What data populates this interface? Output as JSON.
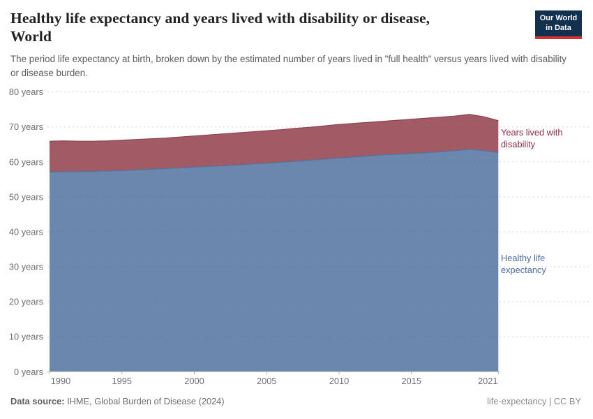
{
  "header": {
    "title_line1": "Healthy life expectancy and years lived with disability or disease,",
    "title_line2": "World",
    "subtitle": "The period life expectancy at birth, broken down by the estimated number of years lived in \"full health\" versus years lived with disability or disease burden.",
    "logo": {
      "line1": "Our World",
      "line2": "in Data"
    }
  },
  "chart_data": {
    "type": "area",
    "stacked": true,
    "title": "Healthy life expectancy and years lived with disability or disease, World",
    "x": [
      1990,
      1991,
      1992,
      1993,
      1994,
      1995,
      1996,
      1997,
      1998,
      1999,
      2000,
      2001,
      2002,
      2003,
      2004,
      2005,
      2006,
      2007,
      2008,
      2009,
      2010,
      2011,
      2012,
      2013,
      2014,
      2015,
      2016,
      2017,
      2018,
      2019,
      2020,
      2021
    ],
    "series": [
      {
        "name": "Healthy life expectancy",
        "fill": "#6c87ae",
        "stroke": "#53719e",
        "label_color": "#4c6b9f",
        "values": [
          57.1,
          57.2,
          57.2,
          57.3,
          57.4,
          57.5,
          57.7,
          57.9,
          58.1,
          58.3,
          58.5,
          58.7,
          58.9,
          59.1,
          59.4,
          59.6,
          59.9,
          60.2,
          60.5,
          60.8,
          61.1,
          61.4,
          61.7,
          62.0,
          62.2,
          62.4,
          62.6,
          62.9,
          63.2,
          63.6,
          63.2,
          62.7
        ]
      },
      {
        "name": "Years lived with disability",
        "fill": "#a25a64",
        "stroke": "#8d4250",
        "label_color": "#8d2f45",
        "values": [
          8.8,
          8.8,
          8.7,
          8.6,
          8.6,
          8.7,
          8.7,
          8.7,
          8.7,
          8.8,
          8.9,
          9.0,
          9.1,
          9.2,
          9.2,
          9.3,
          9.3,
          9.4,
          9.4,
          9.5,
          9.6,
          9.6,
          9.6,
          9.6,
          9.7,
          9.8,
          9.9,
          9.9,
          9.9,
          10.0,
          9.7,
          9.1
        ]
      }
    ],
    "ylim": [
      0,
      80
    ],
    "y_ticks": [
      0,
      10,
      20,
      30,
      40,
      50,
      60,
      70,
      80
    ],
    "y_tick_suffix": " years",
    "x_ticks": [
      1990,
      1995,
      2000,
      2005,
      2010,
      2015,
      2021
    ],
    "grid": true,
    "gridline_color": "#d9d9d9",
    "axis_label_color": "#6e6e6e",
    "legend_position": "right-of-plot"
  },
  "legend": {
    "yld_label": "Years lived with disability",
    "hale_label": "Healthy life expectancy"
  },
  "footer": {
    "datasource_label": "Data source:",
    "datasource_value": " IHME, Global Burden of Disease (2024)",
    "attribution": "life-expectancy | CC BY"
  },
  "branding": {
    "logo_bg": "#12304f",
    "logo_accent": "#d3302f"
  }
}
